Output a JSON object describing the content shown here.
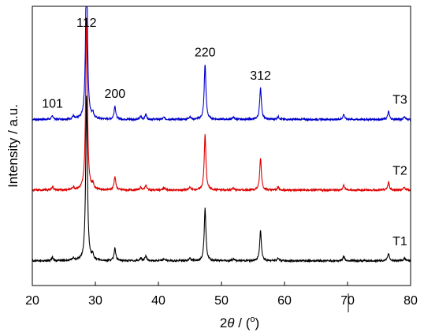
{
  "chart_data": {
    "type": "line",
    "title": "",
    "xlabel": "2θ / (°)",
    "xlabel_parts": {
      "var": "2",
      "theta": "θ",
      "sep": " / (",
      "deg": "o",
      "close": ")"
    },
    "ylabel": "Intensity / a.u.",
    "xlim": [
      20,
      80
    ],
    "xticks": [
      20,
      30,
      40,
      50,
      60,
      70,
      80
    ],
    "yticks_shown": false,
    "grid": false,
    "legend": "none",
    "peak_annotations": [
      {
        "text": "101",
        "x": 23.2
      },
      {
        "text": "112",
        "x": 28.6
      },
      {
        "text": "200",
        "x": 33.1
      },
      {
        "text": "220",
        "x": 47.4
      },
      {
        "text": "312",
        "x": 56.2
      }
    ],
    "series": [
      {
        "name": "T3",
        "color": "#0000cc",
        "offset": 2.0,
        "peak_scale": 1.0
      },
      {
        "name": "T2",
        "color": "#dd0000",
        "offset": 1.0,
        "peak_scale": 1.0
      },
      {
        "name": "T1",
        "color": "#000000",
        "offset": 0.0,
        "peak_scale": 0.95
      }
    ],
    "peaks": [
      {
        "x": 23.2,
        "h": 0.05
      },
      {
        "x": 26.5,
        "h": 0.04
      },
      {
        "x": 28.6,
        "h": 2.45
      },
      {
        "x": 29.6,
        "h": 0.07
      },
      {
        "x": 33.1,
        "h": 0.19
      },
      {
        "x": 37.2,
        "h": 0.04
      },
      {
        "x": 38.0,
        "h": 0.07
      },
      {
        "x": 40.9,
        "h": 0.03
      },
      {
        "x": 45.0,
        "h": 0.04
      },
      {
        "x": 47.4,
        "h": 0.78
      },
      {
        "x": 51.9,
        "h": 0.03
      },
      {
        "x": 56.2,
        "h": 0.45
      },
      {
        "x": 59.0,
        "h": 0.04
      },
      {
        "x": 69.4,
        "h": 0.07
      },
      {
        "x": 76.5,
        "h": 0.11
      },
      {
        "x": 79.0,
        "h": 0.04
      }
    ],
    "ylim": [
      -0.35,
      3.6
    ]
  }
}
